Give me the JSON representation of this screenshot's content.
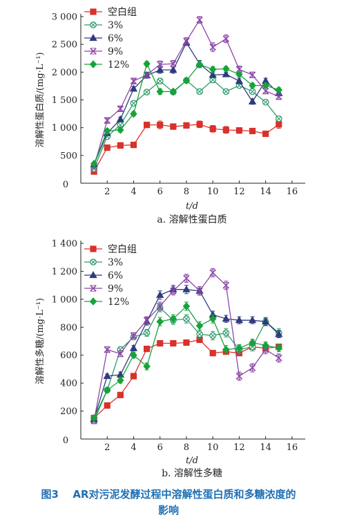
{
  "figure_caption": {
    "label": "图3",
    "text": "AR对污泥发酵过程中溶解性蛋白质和多糖浓度的",
    "text2": "影响"
  },
  "colors": {
    "blank": "#d9312b",
    "p3": "#2e9a6a",
    "p6": "#2f3b7d",
    "p9": "#8c46a8",
    "p12": "#16a33b"
  },
  "chart_data": [
    {
      "type": "line",
      "title": "",
      "subtitle": "a. 溶解性蛋白质",
      "xlabel": "t/d",
      "ylabel": "溶解性蛋白质/(mg·L⁻¹)",
      "xlim": [
        0,
        17
      ],
      "ylim": [
        0,
        3000
      ],
      "xticks": [
        2,
        4,
        6,
        8,
        10,
        12,
        14,
        16
      ],
      "yticks": [
        500,
        1000,
        1500,
        2000,
        2500,
        3000
      ],
      "xticklabels": [
        "2",
        "4",
        "6",
        "8",
        "10",
        "12",
        "14",
        "16"
      ],
      "yticklabels": [
        "500",
        "1 000",
        "1 500",
        "2 000",
        "2 500",
        "3 000"
      ],
      "origin_label": "0",
      "legend_position": "top-left",
      "x": [
        1,
        2,
        3,
        4,
        5,
        6,
        7,
        8,
        9,
        10,
        11,
        12,
        13,
        14,
        15
      ],
      "series": [
        {
          "name": "空白组",
          "marker": "square",
          "color": "#d9312b",
          "values": [
            210,
            640,
            680,
            690,
            1050,
            1050,
            1020,
            1040,
            1060,
            980,
            960,
            950,
            940,
            890,
            1060
          ],
          "error": [
            30,
            40,
            50,
            40,
            40,
            70,
            50,
            50,
            60,
            60,
            60,
            50,
            50,
            50,
            70
          ]
        },
        {
          "name": "3%",
          "marker": "circle-cross",
          "color": "#2e9a6a",
          "values": [
            260,
            840,
            1050,
            1440,
            1640,
            1840,
            1640,
            1850,
            1650,
            1860,
            1650,
            1760,
            1650,
            1460,
            1160
          ],
          "error": [
            20,
            40,
            40,
            40,
            40,
            50,
            40,
            40,
            40,
            50,
            40,
            40,
            40,
            40,
            40
          ]
        },
        {
          "name": "6%",
          "marker": "triangle",
          "color": "#2f3b7d",
          "values": [
            340,
            900,
            1150,
            1700,
            1940,
            2040,
            2040,
            2530,
            2150,
            1950,
            1960,
            1840,
            1470,
            1840,
            1620
          ],
          "error": [
            30,
            40,
            40,
            40,
            50,
            60,
            60,
            50,
            60,
            50,
            40,
            50,
            50,
            50,
            50
          ]
        },
        {
          "name": "9%",
          "marker": "x",
          "color": "#8c46a8",
          "values": [
            300,
            1130,
            1340,
            1840,
            1950,
            2140,
            2150,
            2560,
            2940,
            2450,
            2600,
            2050,
            1950,
            1660,
            1560
          ],
          "error": [
            30,
            40,
            40,
            40,
            50,
            60,
            60,
            60,
            60,
            80,
            70,
            60,
            50,
            50,
            50
          ]
        },
        {
          "name": "12%",
          "marker": "diamond",
          "color": "#16a33b",
          "values": [
            350,
            940,
            960,
            1250,
            2150,
            1650,
            1650,
            1850,
            2140,
            2050,
            2060,
            1960,
            1760,
            1760,
            1680
          ],
          "error": [
            30,
            40,
            40,
            40,
            40,
            50,
            40,
            40,
            60,
            50,
            40,
            40,
            40,
            40,
            40
          ]
        }
      ]
    },
    {
      "type": "line",
      "title": "",
      "subtitle": "b. 溶解性多糖",
      "xlabel": "t/d",
      "ylabel": "溶解性多糖/(mg·L⁻¹)",
      "xlim": [
        0,
        17
      ],
      "ylim": [
        0,
        1400
      ],
      "xticks": [
        2,
        4,
        6,
        8,
        10,
        12,
        14,
        16
      ],
      "yticks": [
        200,
        400,
        600,
        800,
        1000,
        1200,
        1400
      ],
      "xticklabels": [
        "2",
        "4",
        "6",
        "8",
        "10",
        "12",
        "14",
        "16"
      ],
      "yticklabels": [
        "200",
        "400",
        "600",
        "800",
        "1 000",
        "1 200",
        "1 400"
      ],
      "origin_label": "0",
      "legend_position": "top-left",
      "x": [
        1,
        2,
        3,
        4,
        5,
        6,
        7,
        8,
        9,
        10,
        11,
        12,
        13,
        14,
        15
      ],
      "series": [
        {
          "name": "空白组",
          "marker": "square",
          "color": "#d9312b",
          "values": [
            150,
            240,
            315,
            450,
            645,
            685,
            685,
            690,
            710,
            615,
            625,
            615,
            660,
            650,
            660
          ],
          "error": [
            10,
            10,
            10,
            15,
            15,
            15,
            15,
            15,
            15,
            15,
            15,
            15,
            15,
            20,
            20
          ]
        },
        {
          "name": "3%",
          "marker": "circle-cross",
          "color": "#2e9a6a",
          "values": [
            130,
            350,
            640,
            730,
            760,
            940,
            850,
            860,
            750,
            740,
            760,
            640,
            660,
            840,
            760
          ],
          "error": [
            10,
            15,
            20,
            20,
            25,
            30,
            30,
            30,
            30,
            30,
            30,
            30,
            30,
            30,
            30
          ]
        },
        {
          "name": "6%",
          "marker": "triangle",
          "color": "#2f3b7d",
          "values": [
            140,
            450,
            460,
            650,
            840,
            1030,
            1070,
            1070,
            1060,
            890,
            860,
            850,
            850,
            840,
            750
          ],
          "error": [
            10,
            15,
            20,
            20,
            25,
            30,
            30,
            30,
            30,
            25,
            25,
            25,
            25,
            25,
            25
          ]
        },
        {
          "name": "9%",
          "marker": "x",
          "color": "#8c46a8",
          "values": [
            130,
            640,
            610,
            740,
            850,
            950,
            1060,
            1150,
            1060,
            1190,
            1100,
            450,
            510,
            640,
            580
          ],
          "error": [
            10,
            20,
            20,
            20,
            25,
            30,
            30,
            30,
            30,
            30,
            30,
            30,
            30,
            30,
            30
          ]
        },
        {
          "name": "12%",
          "marker": "diamond",
          "color": "#16a33b",
          "values": [
            150,
            350,
            420,
            600,
            520,
            840,
            860,
            950,
            810,
            860,
            640,
            650,
            690,
            670,
            650
          ],
          "error": [
            10,
            15,
            20,
            20,
            25,
            30,
            30,
            30,
            30,
            30,
            30,
            25,
            25,
            25,
            25
          ]
        }
      ]
    }
  ]
}
